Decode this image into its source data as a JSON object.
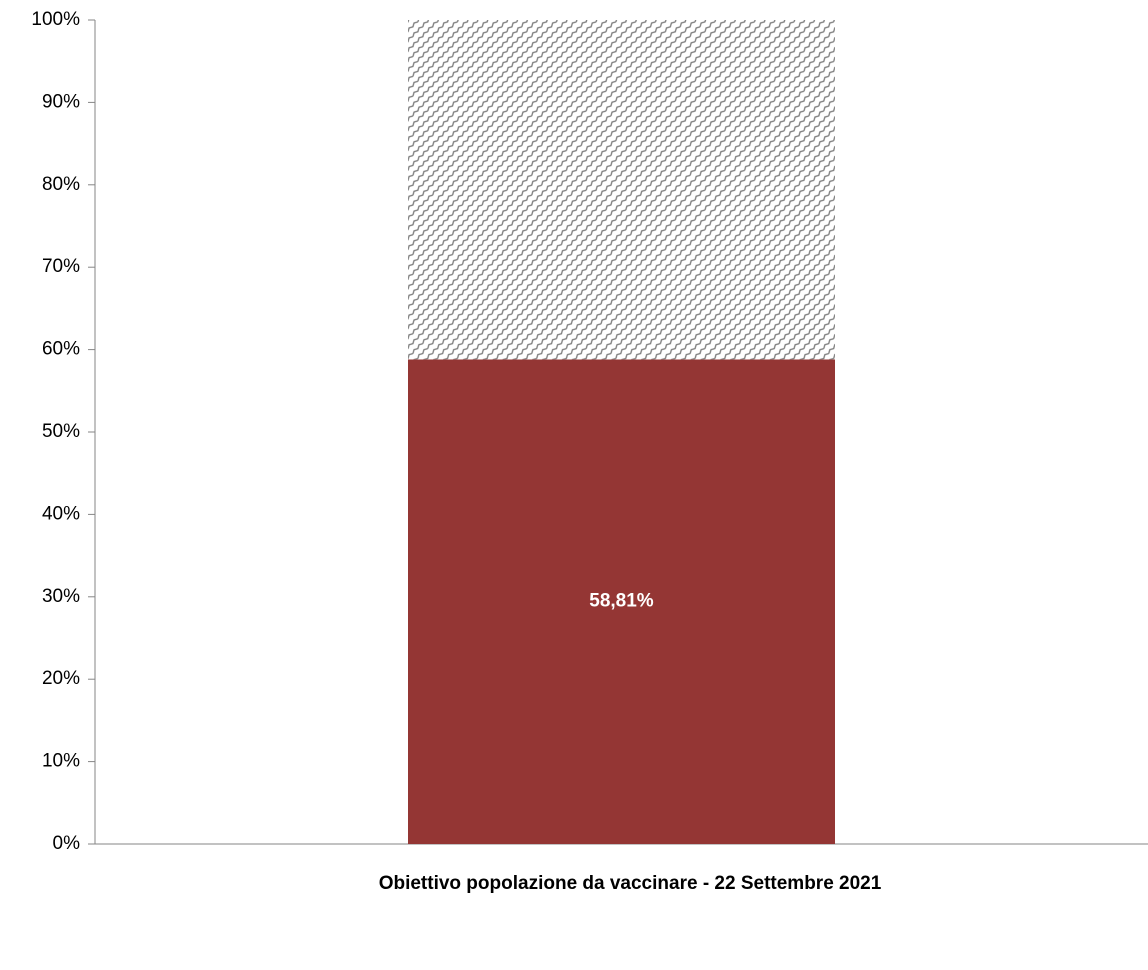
{
  "chart_data": {
    "type": "stacked-bar",
    "x_label": "Obiettivo popolazione da vaccinare - 22 Settembre 2021",
    "categories": [
      null
    ],
    "series": [
      {
        "color": "#943634",
        "values": [
          58.81
        ],
        "value_labels": [
          "58,81%"
        ]
      },
      {
        "color": "#7f7f7f",
        "values": [
          41.19
        ],
        "pattern": "hatch"
      }
    ],
    "ylim": [
      0,
      100
    ],
    "yticks": [
      {
        "value": 0,
        "label": "0%"
      },
      {
        "value": 10,
        "label": "10%"
      },
      {
        "value": 20,
        "label": "20%"
      },
      {
        "value": 30,
        "label": "30%"
      },
      {
        "value": 40,
        "label": "40%"
      },
      {
        "value": 50,
        "label": "50%"
      },
      {
        "value": 60,
        "label": "60%"
      },
      {
        "value": 70,
        "label": "70%"
      },
      {
        "value": 80,
        "label": "80%"
      },
      {
        "value": 90,
        "label": "90%"
      },
      {
        "value": 100,
        "label": "100%"
      }
    ],
    "grid": false
  }
}
